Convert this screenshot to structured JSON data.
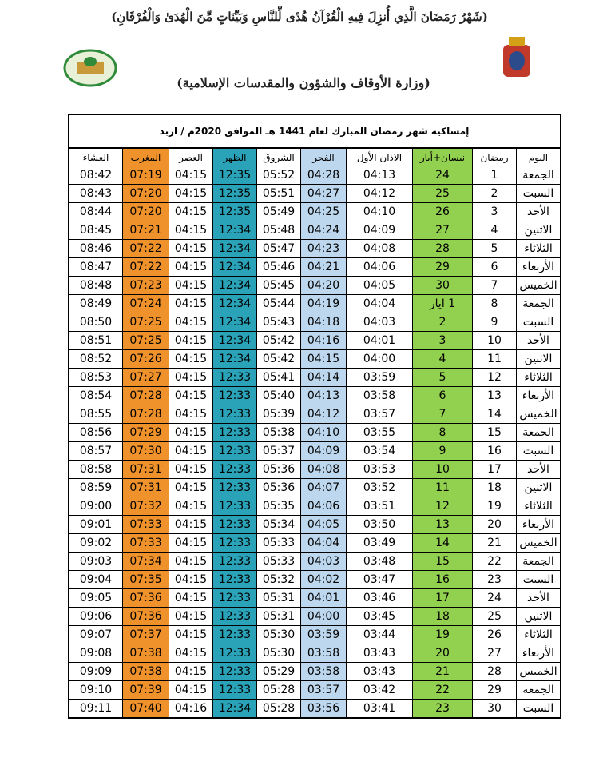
{
  "header": {
    "verse": "(شَهْرُ رَمَضَانَ الَّذِي أُنزِلَ فِيهِ الْقُرْآنُ هُدًى لِّلنَّاسِ وَبَيِّنَاتٍ مِّنَ الْهُدَىٰ وَالْفُرْقَانِ)",
    "ministry": "(وزارة الأوقاف والشؤون والمقدسات الإسلامية)"
  },
  "table": {
    "title": "إمساكية شهر رمضان المبارك لعام 1441 هـ الموافق 2020م / اربد",
    "columns": [
      "اليوم",
      "رمضان",
      "نيسان+أيار",
      "الاذان الأول",
      "الفجر",
      "الشروق",
      "الظهر",
      "العصر",
      "المغرب",
      "العشاء"
    ],
    "rows": [
      [
        "الجمعة",
        1,
        24,
        "04:13",
        "04:28",
        "05:52",
        "12:35",
        "04:15",
        "07:19",
        "08:42"
      ],
      [
        "السبت",
        2,
        25,
        "04:12",
        "04:27",
        "05:51",
        "12:35",
        "04:15",
        "07:20",
        "08:43"
      ],
      [
        "الأحد",
        3,
        26,
        "04:10",
        "04:25",
        "05:49",
        "12:35",
        "04:15",
        "07:20",
        "08:44"
      ],
      [
        "الاثنين",
        4,
        27,
        "04:09",
        "04:24",
        "05:48",
        "12:34",
        "04:15",
        "07:21",
        "08:45"
      ],
      [
        "الثلاثاء",
        5,
        28,
        "04:08",
        "04:23",
        "05:47",
        "12:34",
        "04:15",
        "07:22",
        "08:46"
      ],
      [
        "الأربعاء",
        6,
        29,
        "04:06",
        "04:21",
        "05:46",
        "12:34",
        "04:15",
        "07:22",
        "08:47"
      ],
      [
        "الخميس",
        7,
        30,
        "04:05",
        "04:20",
        "05:45",
        "12:34",
        "04:15",
        "07:23",
        "08:48"
      ],
      [
        "الجمعة",
        8,
        "1 ايار",
        "04:04",
        "04:19",
        "05:44",
        "12:34",
        "04:15",
        "07:24",
        "08:49"
      ],
      [
        "السبت",
        9,
        2,
        "04:03",
        "04:18",
        "05:43",
        "12:34",
        "04:15",
        "07:25",
        "08:50"
      ],
      [
        "الأحد",
        10,
        3,
        "04:01",
        "04:16",
        "05:42",
        "12:34",
        "04:15",
        "07:25",
        "08:51"
      ],
      [
        "الاثنين",
        11,
        4,
        "04:00",
        "04:15",
        "05:42",
        "12:34",
        "04:15",
        "07:26",
        "08:52"
      ],
      [
        "الثلاثاء",
        12,
        5,
        "03:59",
        "04:14",
        "05:41",
        "12:33",
        "04:15",
        "07:27",
        "08:53"
      ],
      [
        "الأربعاء",
        13,
        6,
        "03:58",
        "04:13",
        "05:40",
        "12:33",
        "04:15",
        "07:28",
        "08:54"
      ],
      [
        "الخميس",
        14,
        7,
        "03:57",
        "04:12",
        "05:39",
        "12:33",
        "04:15",
        "07:28",
        "08:55"
      ],
      [
        "الجمعة",
        15,
        8,
        "03:55",
        "04:10",
        "05:38",
        "12:33",
        "04:15",
        "07:29",
        "08:56"
      ],
      [
        "السبت",
        16,
        9,
        "03:54",
        "04:09",
        "05:37",
        "12:33",
        "04:15",
        "07:30",
        "08:57"
      ],
      [
        "الأحد",
        17,
        10,
        "03:53",
        "04:08",
        "05:36",
        "12:33",
        "04:15",
        "07:31",
        "08:58"
      ],
      [
        "الاثنين",
        18,
        11,
        "03:52",
        "04:07",
        "05:36",
        "12:33",
        "04:15",
        "07:31",
        "08:59"
      ],
      [
        "الثلاثاء",
        19,
        12,
        "03:51",
        "04:06",
        "05:35",
        "12:33",
        "04:15",
        "07:32",
        "09:00"
      ],
      [
        "الأربعاء",
        20,
        13,
        "03:50",
        "04:05",
        "05:34",
        "12:33",
        "04:15",
        "07:33",
        "09:01"
      ],
      [
        "الخميس",
        21,
        14,
        "03:49",
        "04:04",
        "05:33",
        "12:33",
        "04:15",
        "07:33",
        "09:02"
      ],
      [
        "الجمعة",
        22,
        15,
        "03:48",
        "04:03",
        "05:33",
        "12:33",
        "04:15",
        "07:34",
        "09:03"
      ],
      [
        "السبت",
        23,
        16,
        "03:47",
        "04:02",
        "05:32",
        "12:33",
        "04:15",
        "07:35",
        "09:04"
      ],
      [
        "الأحد",
        24,
        17,
        "03:46",
        "04:01",
        "05:31",
        "12:33",
        "04:15",
        "07:36",
        "09:05"
      ],
      [
        "الاثنين",
        25,
        18,
        "03:45",
        "04:00",
        "05:31",
        "12:33",
        "04:15",
        "07:36",
        "09:06"
      ],
      [
        "الثلاثاء",
        26,
        19,
        "03:44",
        "03:59",
        "05:30",
        "12:33",
        "04:15",
        "07:37",
        "09:07"
      ],
      [
        "الأربعاء",
        27,
        20,
        "03:43",
        "03:58",
        "05:30",
        "12:33",
        "04:15",
        "07:38",
        "09:08"
      ],
      [
        "الخميس",
        28,
        21,
        "03:43",
        "03:58",
        "05:29",
        "12:33",
        "04:15",
        "07:38",
        "09:09"
      ],
      [
        "الجمعة",
        29,
        22,
        "03:42",
        "03:57",
        "05:28",
        "12:33",
        "04:15",
        "07:39",
        "09:10"
      ],
      [
        "السبت",
        30,
        23,
        "03:41",
        "03:56",
        "05:28",
        "12:34",
        "04:16",
        "07:40",
        "09:11"
      ]
    ]
  }
}
